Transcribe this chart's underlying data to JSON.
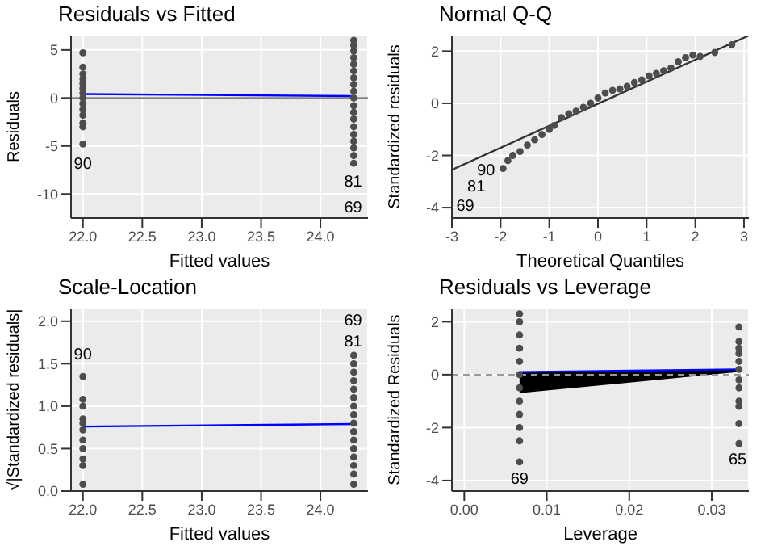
{
  "chart_data": [
    {
      "type": "scatter",
      "title": "Residuals vs Fitted",
      "xlabel": "Fitted values",
      "ylabel": "Residuals",
      "xlim": [
        21.9,
        24.4
      ],
      "ylim": [
        -12.5,
        6.5
      ],
      "xticks": [
        {
          "value": 22,
          "label": "22.0"
        },
        {
          "value": 22.5,
          "label": "22.5"
        },
        {
          "value": 23,
          "label": "23.0"
        },
        {
          "value": 23.5,
          "label": "23.5"
        },
        {
          "value": 24,
          "label": "24.0"
        }
      ],
      "yticks": [
        -10,
        -5,
        0,
        5
      ],
      "grid": true,
      "series": [
        {
          "marker": "circle",
          "color": "#4d4d4d",
          "x": [
            22,
            22,
            22,
            22,
            22,
            22,
            22,
            22,
            22,
            22,
            22,
            22,
            22,
            22,
            24.28,
            24.28,
            24.28,
            24.28,
            24.28,
            24.28,
            24.28,
            24.28,
            24.28,
            24.28,
            24.28,
            24.28,
            24.28,
            24.28,
            24.28,
            24.28,
            24.28,
            24.28,
            24.28
          ],
          "values": [
            -4.8,
            -3.0,
            -2.6,
            -1.8,
            -1.2,
            -0.6,
            0,
            0.5,
            1,
            1.5,
            2,
            2.5,
            3.2,
            4.7,
            -6.8,
            -6,
            -5.2,
            -4.5,
            -3.8,
            -3,
            -2.2,
            -1.5,
            -0.8,
            0,
            0.7,
            1.4,
            2.1,
            2.8,
            3.5,
            4.2,
            4.9,
            5.5,
            6.0
          ]
        },
        {
          "type": "line",
          "color": "#0000ff",
          "x": [
            22,
            24.28
          ],
          "values": [
            0.4,
            0.2
          ]
        }
      ],
      "ref_lines": [
        {
          "axis": "y",
          "value": 0,
          "color": "#808080"
        }
      ],
      "annotations": [
        "90",
        "81",
        "69"
      ]
    },
    {
      "type": "scatter",
      "title": "Normal Q-Q",
      "xlabel": "Theoretical Quantiles",
      "ylabel": "Standardized residuals",
      "xlim": [
        -3,
        3.1
      ],
      "ylim": [
        -4.4,
        2.6
      ],
      "xticks": [
        -3,
        -2,
        -1,
        0,
        1,
        2,
        3
      ],
      "yticks": [
        -4,
        -2,
        0,
        2
      ],
      "grid": true,
      "series": [
        {
          "marker": "circle",
          "color": "#4d4d4d",
          "x": [
            -1.95,
            -1.85,
            -1.75,
            -1.6,
            -1.45,
            -1.3,
            -1.15,
            -1.0,
            -0.9,
            -0.75,
            -0.6,
            -0.45,
            -0.3,
            -0.15,
            0,
            0.15,
            0.3,
            0.45,
            0.6,
            0.75,
            0.9,
            1.05,
            1.2,
            1.35,
            1.5,
            1.65,
            1.8,
            1.95,
            2.1,
            2.4,
            2.75
          ],
          "values": [
            -2.5,
            -2.2,
            -2.0,
            -1.85,
            -1.6,
            -1.4,
            -1.2,
            -1.0,
            -0.85,
            -0.55,
            -0.4,
            -0.3,
            -0.15,
            0.0,
            0.2,
            0.4,
            0.5,
            0.55,
            0.65,
            0.8,
            0.9,
            1.05,
            1.15,
            1.25,
            1.35,
            1.6,
            1.75,
            1.85,
            1.8,
            1.95,
            2.25
          ]
        },
        {
          "type": "line",
          "color": "#333333",
          "x": [
            -3,
            3.1
          ],
          "values": [
            -2.55,
            2.6
          ]
        }
      ],
      "annotations": [
        "90",
        "81",
        "69"
      ]
    },
    {
      "type": "scatter",
      "title": "Scale-Location",
      "xlabel": "Fitted values",
      "ylabel": "√|Standardized residuals|",
      "xlim": [
        21.9,
        24.4
      ],
      "ylim": [
        0,
        2.15
      ],
      "xticks": [
        {
          "value": 22,
          "label": "22.0"
        },
        {
          "value": 22.5,
          "label": "22.5"
        },
        {
          "value": 23,
          "label": "23.0"
        },
        {
          "value": 23.5,
          "label": "23.5"
        },
        {
          "value": 24,
          "label": "24.0"
        }
      ],
      "yticks": [
        {
          "value": 0,
          "label": "0.0"
        },
        {
          "value": 0.5,
          "label": "0.5"
        },
        {
          "value": 1,
          "label": "1.0"
        },
        {
          "value": 1.5,
          "label": "1.5"
        },
        {
          "value": 2,
          "label": "2.0"
        }
      ],
      "grid": true,
      "series": [
        {
          "marker": "circle",
          "color": "#4d4d4d",
          "x": [
            22,
            22,
            22,
            22,
            22,
            22,
            22,
            22,
            22,
            22,
            22,
            24.28,
            24.28,
            24.28,
            24.28,
            24.28,
            24.28,
            24.28,
            24.28,
            24.28,
            24.28,
            24.28,
            24.28,
            24.28,
            24.28,
            24.28,
            24.28
          ],
          "values": [
            0.08,
            0.3,
            0.38,
            0.5,
            0.6,
            0.72,
            0.8,
            0.85,
            1.0,
            1.08,
            1.35,
            0.08,
            0.2,
            0.3,
            0.4,
            0.5,
            0.6,
            0.7,
            0.8,
            0.9,
            1.0,
            1.1,
            1.2,
            1.3,
            1.4,
            1.5,
            1.6
          ]
        },
        {
          "type": "line",
          "color": "#0000ff",
          "x": [
            22,
            24.28
          ],
          "values": [
            0.76,
            0.79
          ]
        }
      ],
      "annotations": [
        "90",
        "69",
        "81"
      ]
    },
    {
      "type": "scatter",
      "title": "Residuals vs Leverage",
      "xlabel": "Leverage",
      "ylabel": "Standardized Residuals",
      "xlim": [
        -0.0015,
        0.0345
      ],
      "ylim": [
        -4.4,
        2.5
      ],
      "xticks": [
        {
          "value": 0,
          "label": "0.00"
        },
        {
          "value": 0.01,
          "label": "0.01"
        },
        {
          "value": 0.02,
          "label": "0.02"
        },
        {
          "value": 0.03,
          "label": "0.03"
        }
      ],
      "yticks": [
        -4,
        -2,
        0,
        2
      ],
      "grid": true,
      "series": [
        {
          "marker": "circle",
          "color": "#4d4d4d",
          "x": [
            0.0067,
            0.0067,
            0.0067,
            0.0067,
            0.0067,
            0.0067,
            0.0067,
            0.0067,
            0.0067,
            0.0067,
            0.0067,
            0.0067,
            0.0333,
            0.0333,
            0.0333,
            0.0333,
            0.0333,
            0.0333,
            0.0333,
            0.0333,
            0.0333,
            0.0333,
            0.0333,
            0.0333
          ],
          "values": [
            -3.3,
            -2.5,
            -2.0,
            -1.5,
            -1,
            -0.5,
            0,
            0.5,
            1,
            1.5,
            2,
            2.3,
            -2.6,
            -1.85,
            -1.2,
            -1.0,
            -0.5,
            -0.2,
            0.2,
            0.5,
            0.8,
            1.0,
            1.25,
            1.8
          ]
        },
        {
          "type": "line",
          "color": "#0000ff",
          "x": [
            0.0067,
            0.0333
          ],
          "values": [
            0.1,
            0.2
          ],
          "lower": [
            -0.7,
            0.1
          ],
          "upper": [
            0.1,
            0.2
          ]
        }
      ],
      "ref_lines": [
        {
          "axis": "y",
          "value": 0,
          "color": "#999999",
          "line_style": "dashed"
        }
      ],
      "annotations": [
        "69",
        "65"
      ]
    }
  ]
}
